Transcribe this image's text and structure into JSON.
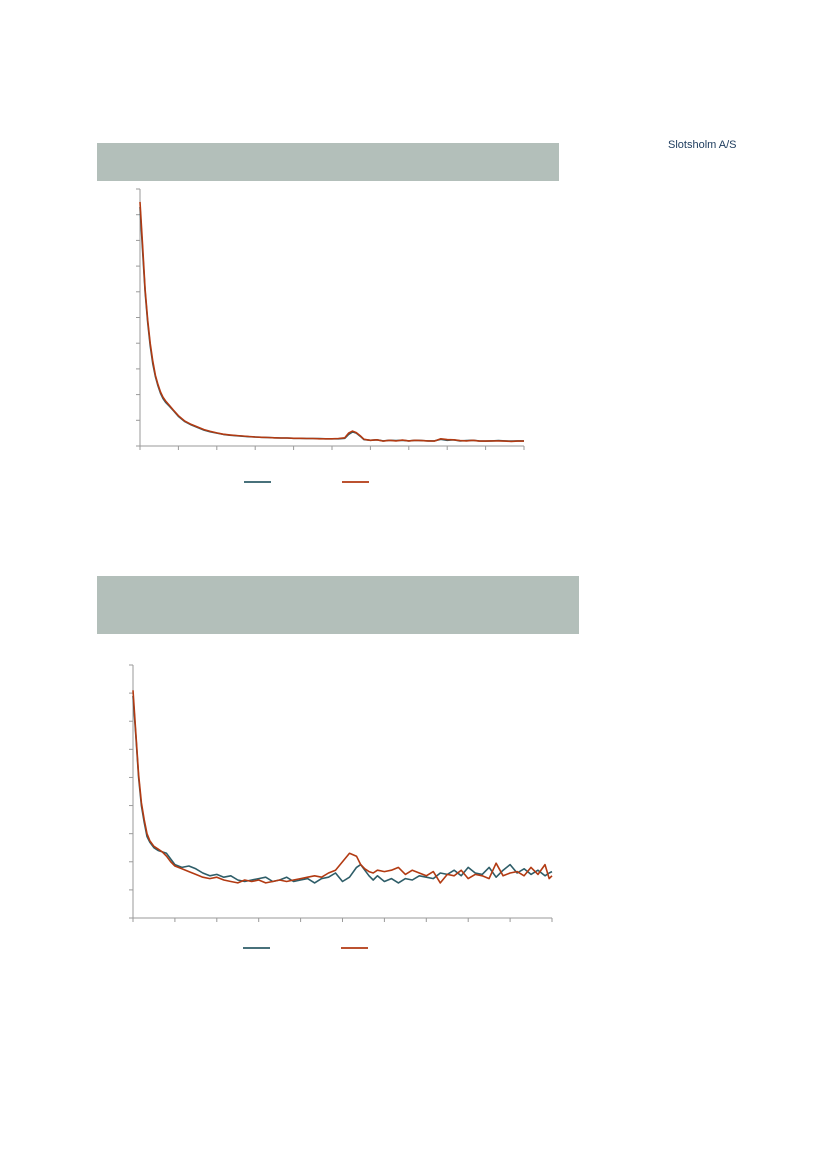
{
  "brand": {
    "name": "Slotsholm A/S"
  },
  "colors": {
    "banner": "#b3bfba",
    "series_a": "#2e5d68",
    "series_b": "#b23a12"
  },
  "chart_data": [
    {
      "type": "line",
      "title": "",
      "xlabel": "",
      "ylabel": "",
      "grid": false,
      "legend": "bottom",
      "xlim": [
        0,
        300
      ],
      "ylim": [
        0,
        10
      ],
      "x_ticks": 10,
      "y_ticks": 10,
      "series": [
        {
          "color": "#2e5d68",
          "x": [
            0,
            2,
            4,
            6,
            8,
            10,
            12,
            14,
            16,
            18,
            20,
            23,
            26,
            30,
            35,
            40,
            45,
            50,
            55,
            60,
            65,
            70,
            75,
            80,
            85,
            90,
            95,
            100,
            105,
            110,
            115,
            120,
            125,
            130,
            135,
            140,
            145,
            150,
            155,
            160,
            163,
            166,
            169,
            172,
            175,
            180,
            185,
            190,
            195,
            200,
            205,
            210,
            215,
            220,
            225,
            230,
            235,
            240,
            245,
            250,
            255,
            260,
            265,
            270,
            275,
            280,
            285,
            290,
            295,
            300
          ],
          "values": [
            9.3,
            7.6,
            6.0,
            4.8,
            3.9,
            3.2,
            2.7,
            2.35,
            2.05,
            1.85,
            1.7,
            1.55,
            1.38,
            1.15,
            0.95,
            0.82,
            0.72,
            0.62,
            0.55,
            0.5,
            0.45,
            0.42,
            0.4,
            0.38,
            0.36,
            0.35,
            0.34,
            0.33,
            0.32,
            0.31,
            0.31,
            0.3,
            0.3,
            0.29,
            0.29,
            0.29,
            0.28,
            0.28,
            0.28,
            0.3,
            0.45,
            0.55,
            0.5,
            0.38,
            0.25,
            0.22,
            0.24,
            0.2,
            0.22,
            0.21,
            0.22,
            0.2,
            0.22,
            0.21,
            0.2,
            0.2,
            0.26,
            0.22,
            0.24,
            0.2,
            0.21,
            0.22,
            0.2,
            0.19,
            0.2,
            0.21,
            0.2,
            0.19,
            0.2,
            0.2
          ]
        },
        {
          "color": "#b23a12",
          "x": [
            0,
            2,
            4,
            6,
            8,
            10,
            12,
            14,
            16,
            18,
            20,
            23,
            26,
            30,
            35,
            40,
            45,
            50,
            55,
            60,
            65,
            70,
            75,
            80,
            85,
            90,
            95,
            100,
            105,
            110,
            115,
            120,
            125,
            130,
            135,
            140,
            145,
            150,
            155,
            160,
            163,
            166,
            169,
            172,
            175,
            180,
            185,
            190,
            195,
            200,
            205,
            210,
            215,
            220,
            225,
            230,
            235,
            240,
            245,
            250,
            255,
            260,
            265,
            270,
            275,
            280,
            285,
            290,
            295,
            300
          ],
          "values": [
            9.5,
            7.8,
            6.1,
            4.9,
            4.0,
            3.3,
            2.75,
            2.4,
            2.1,
            1.9,
            1.75,
            1.58,
            1.4,
            1.18,
            0.97,
            0.84,
            0.74,
            0.64,
            0.57,
            0.51,
            0.46,
            0.43,
            0.41,
            0.39,
            0.37,
            0.35,
            0.34,
            0.33,
            0.32,
            0.31,
            0.31,
            0.3,
            0.3,
            0.29,
            0.29,
            0.28,
            0.28,
            0.28,
            0.29,
            0.32,
            0.5,
            0.58,
            0.52,
            0.4,
            0.26,
            0.22,
            0.24,
            0.19,
            0.22,
            0.2,
            0.23,
            0.2,
            0.22,
            0.21,
            0.2,
            0.19,
            0.28,
            0.25,
            0.24,
            0.21,
            0.2,
            0.22,
            0.19,
            0.19,
            0.2,
            0.2,
            0.19,
            0.18,
            0.19,
            0.19
          ]
        }
      ]
    },
    {
      "type": "line",
      "title": "",
      "xlabel": "",
      "ylabel": "",
      "grid": false,
      "legend": "bottom",
      "xlim": [
        0,
        300
      ],
      "ylim": [
        0,
        9
      ],
      "x_ticks": 10,
      "y_ticks": 9,
      "series": [
        {
          "color": "#2e5d68",
          "x": [
            0,
            2,
            4,
            6,
            8,
            10,
            12,
            15,
            18,
            21,
            24,
            27,
            30,
            35,
            40,
            45,
            50,
            55,
            60,
            65,
            70,
            75,
            80,
            85,
            90,
            95,
            100,
            105,
            110,
            115,
            120,
            125,
            130,
            135,
            140,
            145,
            150,
            155,
            160,
            163,
            166,
            169,
            172,
            175,
            180,
            185,
            190,
            195,
            200,
            205,
            210,
            215,
            220,
            225,
            230,
            235,
            240,
            245,
            250,
            255,
            260,
            265,
            270,
            275,
            280,
            285,
            290,
            295,
            298,
            300
          ],
          "values": [
            7.9,
            6.5,
            5.0,
            4.0,
            3.4,
            2.9,
            2.7,
            2.5,
            2.4,
            2.35,
            2.3,
            2.1,
            1.9,
            1.8,
            1.85,
            1.75,
            1.6,
            1.5,
            1.55,
            1.45,
            1.5,
            1.35,
            1.3,
            1.35,
            1.4,
            1.45,
            1.3,
            1.35,
            1.45,
            1.3,
            1.35,
            1.4,
            1.25,
            1.4,
            1.45,
            1.6,
            1.3,
            1.45,
            1.8,
            1.9,
            1.7,
            1.5,
            1.35,
            1.5,
            1.3,
            1.4,
            1.25,
            1.4,
            1.35,
            1.5,
            1.45,
            1.4,
            1.6,
            1.55,
            1.7,
            1.5,
            1.8,
            1.6,
            1.55,
            1.8,
            1.45,
            1.7,
            1.9,
            1.6,
            1.75,
            1.55,
            1.7,
            1.5,
            1.6,
            1.65
          ]
        },
        {
          "color": "#b23a12",
          "x": [
            0,
            2,
            4,
            6,
            8,
            10,
            12,
            15,
            18,
            21,
            24,
            27,
            30,
            35,
            40,
            45,
            50,
            55,
            60,
            65,
            70,
            75,
            80,
            85,
            90,
            95,
            100,
            105,
            110,
            115,
            120,
            125,
            130,
            135,
            140,
            145,
            150,
            155,
            160,
            163,
            166,
            169,
            172,
            175,
            180,
            185,
            190,
            195,
            200,
            205,
            210,
            215,
            220,
            225,
            230,
            235,
            240,
            245,
            250,
            255,
            260,
            265,
            270,
            275,
            280,
            285,
            290,
            295,
            298,
            300
          ],
          "values": [
            8.1,
            6.6,
            5.1,
            4.1,
            3.5,
            3.0,
            2.75,
            2.55,
            2.45,
            2.35,
            2.2,
            2.0,
            1.85,
            1.75,
            1.65,
            1.55,
            1.45,
            1.4,
            1.45,
            1.35,
            1.3,
            1.25,
            1.35,
            1.3,
            1.35,
            1.25,
            1.3,
            1.35,
            1.3,
            1.35,
            1.4,
            1.45,
            1.5,
            1.45,
            1.6,
            1.7,
            2.0,
            2.3,
            2.2,
            1.9,
            1.75,
            1.65,
            1.6,
            1.7,
            1.65,
            1.7,
            1.8,
            1.55,
            1.7,
            1.6,
            1.5,
            1.65,
            1.25,
            1.55,
            1.5,
            1.7,
            1.4,
            1.55,
            1.5,
            1.4,
            1.95,
            1.5,
            1.6,
            1.65,
            1.5,
            1.8,
            1.55,
            1.9,
            1.4,
            1.5
          ]
        }
      ]
    }
  ]
}
